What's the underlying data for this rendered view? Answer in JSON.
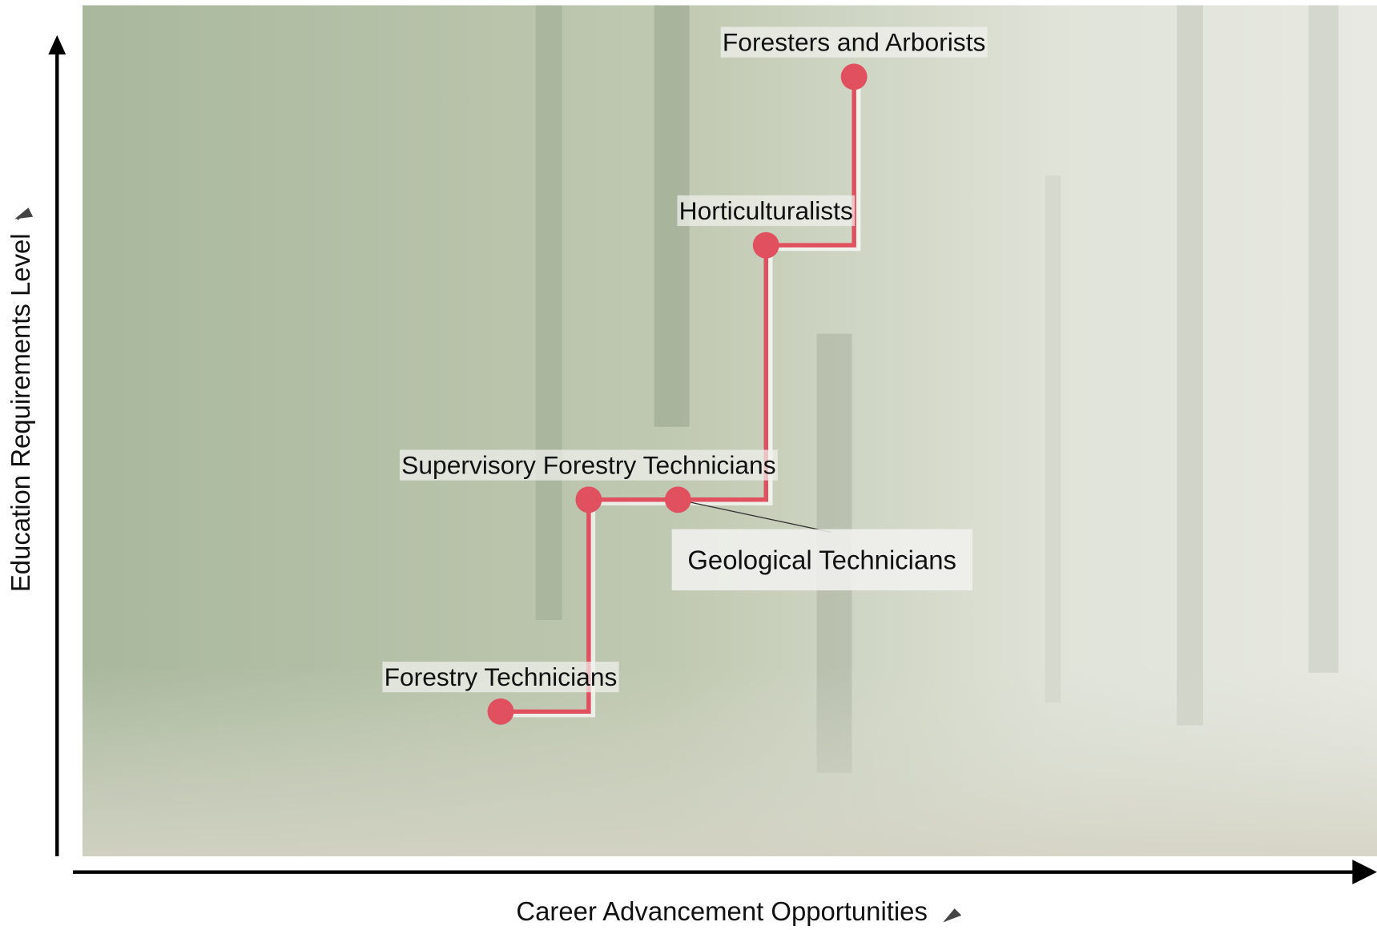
{
  "chart_data": {
    "type": "scatter",
    "xlabel": "Career Advancement Opportunities",
    "ylabel": "Education Requirements Level",
    "labels": [
      "Forestry Technicians",
      "Supervisory Forestry Technicians",
      "Geological Technicians",
      "Horticulturalists",
      "Foresters and Arborists"
    ],
    "x": [
      32.3,
      39.1,
      46.0,
      52.8,
      59.6
    ],
    "values": [
      17.0,
      41.9,
      41.9,
      71.8,
      91.6
    ],
    "xlim": [
      0,
      100
    ],
    "ylim": [
      0,
      100
    ],
    "color": "#e0505e",
    "line_shape": "hv"
  }
}
